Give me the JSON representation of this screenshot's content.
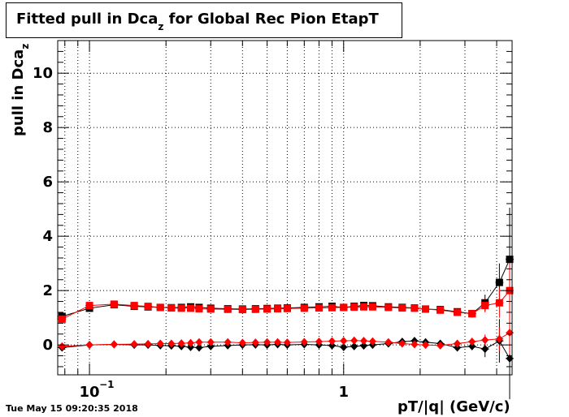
{
  "title": {
    "main": "Fitted pull in Dca",
    "sub": "z",
    "rest": " for Global Rec Pion EtapT"
  },
  "ylabel": {
    "main": "pull in Dca",
    "sub": "z"
  },
  "xlabel": "pT/|q| (GeV/c)",
  "datestamp": "Tue May 15 09:20:35 2018",
  "colors": {
    "series_a": "#000000",
    "series_b": "#ff0000",
    "grid": "#000000"
  },
  "chart_data": {
    "type": "scatter",
    "x_scale": "log",
    "xlim": [
      0.075,
      4.6
    ],
    "ylim": [
      -1.1,
      11.2
    ],
    "grid": true,
    "x_ticks": [
      {
        "value": 0.1,
        "label": "10",
        "sup": "−1"
      },
      {
        "value": 1,
        "label": "1",
        "sup": ""
      }
    ],
    "y_ticks": [
      {
        "value": 0,
        "label": "0"
      },
      {
        "value": 2,
        "label": "2"
      },
      {
        "value": 4,
        "label": "4"
      },
      {
        "value": 6,
        "label": "6"
      },
      {
        "value": 8,
        "label": "8"
      },
      {
        "value": 10,
        "label": "10"
      }
    ],
    "series": [
      {
        "color": "#000000",
        "marker": "square",
        "x": [
          0.078,
          0.1,
          0.125,
          0.15,
          0.17,
          0.19,
          0.21,
          0.23,
          0.25,
          0.27,
          0.3,
          0.35,
          0.4,
          0.45,
          0.5,
          0.55,
          0.6,
          0.7,
          0.8,
          0.9,
          1.0,
          1.1,
          1.2,
          1.3,
          1.5,
          1.7,
          1.9,
          2.1,
          2.4,
          2.8,
          3.2,
          3.6,
          4.1,
          4.5
        ],
        "y": [
          1.05,
          1.35,
          1.48,
          1.42,
          1.4,
          1.38,
          1.37,
          1.38,
          1.4,
          1.38,
          1.35,
          1.33,
          1.32,
          1.33,
          1.34,
          1.35,
          1.36,
          1.38,
          1.4,
          1.42,
          1.38,
          1.42,
          1.45,
          1.44,
          1.4,
          1.38,
          1.36,
          1.32,
          1.3,
          1.22,
          1.15,
          1.55,
          2.3,
          3.15
        ],
        "yerr": [
          0.08,
          0.07,
          0.05,
          0.04,
          0.03,
          0.03,
          0.03,
          0.03,
          0.03,
          0.03,
          0.03,
          0.03,
          0.03,
          0.03,
          0.03,
          0.03,
          0.03,
          0.03,
          0.03,
          0.03,
          0.04,
          0.04,
          0.04,
          0.04,
          0.04,
          0.05,
          0.05,
          0.06,
          0.07,
          0.1,
          0.14,
          0.3,
          0.7,
          1.9
        ]
      },
      {
        "color": "#ff0000",
        "marker": "square",
        "x": [
          0.078,
          0.1,
          0.125,
          0.15,
          0.17,
          0.19,
          0.21,
          0.23,
          0.25,
          0.27,
          0.3,
          0.35,
          0.4,
          0.45,
          0.5,
          0.55,
          0.6,
          0.7,
          0.8,
          0.9,
          1.0,
          1.1,
          1.2,
          1.3,
          1.5,
          1.7,
          1.9,
          2.1,
          2.4,
          2.8,
          3.2,
          3.6,
          4.1,
          4.5
        ],
        "y": [
          0.95,
          1.45,
          1.5,
          1.45,
          1.42,
          1.38,
          1.36,
          1.35,
          1.35,
          1.33,
          1.32,
          1.31,
          1.3,
          1.31,
          1.32,
          1.33,
          1.34,
          1.35,
          1.36,
          1.37,
          1.38,
          1.39,
          1.4,
          1.4,
          1.38,
          1.36,
          1.35,
          1.32,
          1.28,
          1.2,
          1.15,
          1.45,
          1.55,
          2.0
        ],
        "yerr": [
          0.08,
          0.07,
          0.05,
          0.04,
          0.03,
          0.03,
          0.03,
          0.03,
          0.03,
          0.03,
          0.03,
          0.03,
          0.03,
          0.03,
          0.03,
          0.03,
          0.03,
          0.03,
          0.03,
          0.03,
          0.04,
          0.04,
          0.04,
          0.04,
          0.04,
          0.05,
          0.05,
          0.06,
          0.07,
          0.1,
          0.14,
          0.25,
          0.55,
          1.0
        ]
      },
      {
        "color": "#000000",
        "marker": "diamond",
        "x": [
          0.078,
          0.1,
          0.125,
          0.15,
          0.17,
          0.19,
          0.21,
          0.23,
          0.25,
          0.27,
          0.3,
          0.35,
          0.4,
          0.45,
          0.5,
          0.55,
          0.6,
          0.7,
          0.8,
          0.9,
          1.0,
          1.1,
          1.2,
          1.3,
          1.5,
          1.7,
          1.9,
          2.1,
          2.4,
          2.8,
          3.2,
          3.6,
          4.1,
          4.5
        ],
        "y": [
          -0.1,
          0.0,
          0.02,
          0.0,
          0.0,
          -0.02,
          -0.03,
          -0.05,
          -0.08,
          -0.1,
          -0.05,
          -0.02,
          0.0,
          0.01,
          0.0,
          0.02,
          0.0,
          0.02,
          0.0,
          -0.02,
          -0.08,
          -0.05,
          -0.03,
          0.0,
          0.05,
          0.12,
          0.15,
          0.1,
          0.05,
          -0.1,
          -0.05,
          -0.15,
          0.15,
          -0.5
        ],
        "yerr": [
          0.08,
          0.07,
          0.05,
          0.04,
          0.03,
          0.03,
          0.03,
          0.03,
          0.03,
          0.03,
          0.03,
          0.03,
          0.03,
          0.03,
          0.03,
          0.03,
          0.03,
          0.03,
          0.03,
          0.03,
          0.04,
          0.04,
          0.04,
          0.04,
          0.04,
          0.05,
          0.05,
          0.06,
          0.07,
          0.1,
          0.14,
          0.3,
          0.8,
          1.5
        ]
      },
      {
        "color": "#ff0000",
        "marker": "diamond",
        "x": [
          0.078,
          0.1,
          0.125,
          0.15,
          0.17,
          0.19,
          0.21,
          0.23,
          0.25,
          0.27,
          0.3,
          0.35,
          0.4,
          0.45,
          0.5,
          0.55,
          0.6,
          0.7,
          0.8,
          0.9,
          1.0,
          1.1,
          1.2,
          1.3,
          1.5,
          1.7,
          1.9,
          2.1,
          2.4,
          2.8,
          3.2,
          3.6,
          4.1,
          4.5
        ],
        "y": [
          -0.05,
          0.0,
          0.02,
          0.03,
          0.04,
          0.05,
          0.05,
          0.06,
          0.07,
          0.1,
          0.1,
          0.1,
          0.08,
          0.09,
          0.1,
          0.1,
          0.09,
          0.11,
          0.12,
          0.14,
          0.15,
          0.16,
          0.15,
          0.13,
          0.1,
          0.05,
          0.02,
          0.0,
          -0.02,
          0.05,
          0.12,
          0.18,
          0.22,
          0.45
        ],
        "yerr": [
          0.08,
          0.07,
          0.05,
          0.04,
          0.03,
          0.03,
          0.03,
          0.03,
          0.03,
          0.03,
          0.03,
          0.03,
          0.03,
          0.03,
          0.03,
          0.03,
          0.03,
          0.03,
          0.03,
          0.03,
          0.04,
          0.04,
          0.04,
          0.04,
          0.04,
          0.05,
          0.05,
          0.06,
          0.07,
          0.1,
          0.14,
          0.2,
          0.45,
          0.8
        ]
      }
    ]
  }
}
